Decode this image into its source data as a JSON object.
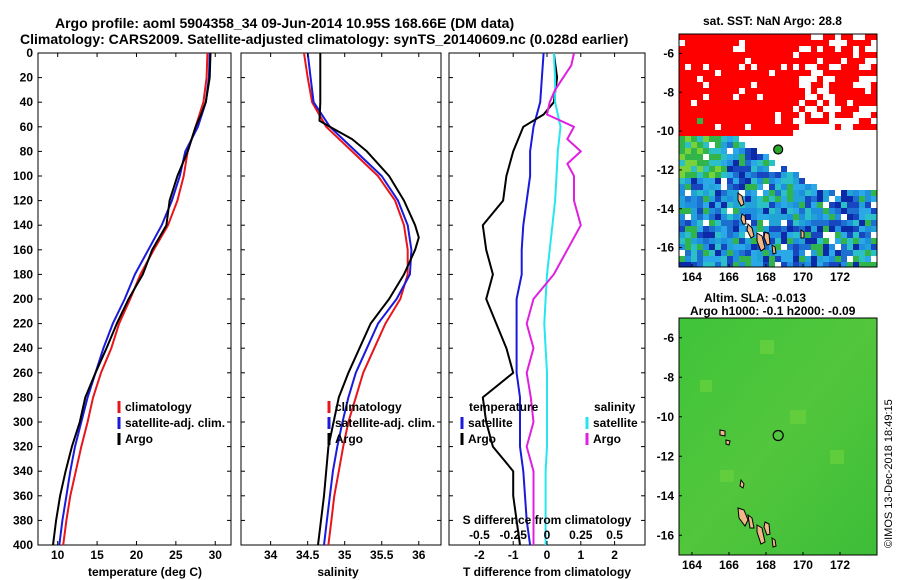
{
  "header": {
    "line1": "Argo profile: aoml 5904358_34 09-Jun-2014 10.95S 168.66E (DM data)",
    "line2": "Climatology: CARS2009. Satellite-adjusted climatology: synTS_20140609.nc (0.028d earlier)"
  },
  "colors": {
    "clim": "#e8151b",
    "sat": "#1a1adb",
    "argo": "#000000",
    "cyan": "#25e6f0",
    "magenta": "#e020e0"
  },
  "chart_data": [
    {
      "type": "line",
      "panel": "temperature",
      "xlabel": "temperature (deg C)",
      "xlim": [
        7.5,
        32
      ],
      "xticks": [
        "10",
        "15",
        "20",
        "25",
        "30"
      ],
      "ylim": [
        0,
        400
      ],
      "yticks": [
        "0",
        "20",
        "40",
        "60",
        "80",
        "100",
        "120",
        "140",
        "160",
        "180",
        "200",
        "220",
        "240",
        "260",
        "280",
        "300",
        "320",
        "340",
        "360",
        "380",
        "400"
      ],
      "legend": [
        "climatology",
        "satellite-adj. clim.",
        "Argo"
      ],
      "series": [
        {
          "name": "climatology",
          "color": "clim",
          "depth": [
            0,
            20,
            40,
            60,
            80,
            100,
            120,
            140,
            160,
            180,
            200,
            220,
            240,
            260,
            280,
            300,
            320,
            340,
            360,
            380,
            400
          ],
          "values": [
            29.0,
            28.9,
            28.5,
            27.5,
            26.5,
            26.0,
            25.2,
            24.0,
            22.2,
            20.5,
            19.2,
            17.8,
            16.8,
            15.5,
            14.5,
            13.8,
            13.0,
            12.3,
            11.6,
            11.1,
            10.7
          ]
        },
        {
          "name": "satellite-adj. clim.",
          "color": "sat",
          "depth": [
            0,
            20,
            40,
            60,
            80,
            100,
            120,
            140,
            160,
            180,
            200,
            220,
            240,
            260,
            280,
            300,
            320,
            340,
            360,
            380,
            400
          ],
          "values": [
            29.3,
            29.2,
            28.8,
            27.8,
            26.2,
            25.5,
            24.5,
            23.2,
            21.5,
            19.8,
            18.5,
            17.0,
            15.8,
            14.8,
            13.8,
            13.0,
            12.2,
            11.6,
            11.1,
            10.6,
            10.2
          ]
        },
        {
          "name": "Argo",
          "color": "argo",
          "depth": [
            0,
            20,
            40,
            50,
            60,
            80,
            100,
            120,
            140,
            160,
            180,
            200,
            220,
            240,
            260,
            280,
            300,
            320,
            340,
            360,
            380,
            400
          ],
          "values": [
            29.4,
            29.3,
            28.8,
            28.2,
            27.5,
            26.5,
            25.2,
            24.2,
            23.8,
            22.0,
            20.8,
            19.0,
            17.5,
            16.2,
            14.8,
            13.5,
            12.8,
            11.8,
            11.0,
            10.3,
            9.8,
            9.4
          ]
        }
      ]
    },
    {
      "type": "line",
      "panel": "salinity",
      "xlabel": "salinity",
      "xlim": [
        33.6,
        36.3
      ],
      "xticks": [
        "34",
        "34.5",
        "35",
        "35.5",
        "36"
      ],
      "ylim": [
        0,
        400
      ],
      "legend": [
        "climatology",
        "satellite-adj. clim.",
        "Argo"
      ],
      "series": [
        {
          "name": "climatology",
          "color": "clim",
          "depth": [
            0,
            20,
            40,
            60,
            80,
            100,
            120,
            140,
            160,
            180,
            200,
            220,
            240,
            260,
            280,
            300,
            320,
            340,
            360,
            380,
            400
          ],
          "values": [
            34.45,
            34.5,
            34.56,
            34.75,
            35.1,
            35.45,
            35.68,
            35.8,
            35.85,
            35.85,
            35.75,
            35.55,
            35.4,
            35.25,
            35.15,
            35.05,
            34.98,
            34.92,
            34.86,
            34.82,
            34.78
          ]
        },
        {
          "name": "satellite-adj. clim.",
          "color": "sat",
          "depth": [
            0,
            20,
            40,
            60,
            80,
            100,
            120,
            140,
            160,
            180,
            200,
            220,
            240,
            260,
            280,
            300,
            320,
            340,
            360,
            380,
            400
          ],
          "values": [
            34.5,
            34.54,
            34.58,
            34.8,
            35.15,
            35.5,
            35.72,
            35.85,
            35.9,
            35.88,
            35.7,
            35.45,
            35.3,
            35.15,
            35.05,
            34.97,
            34.9,
            34.84,
            34.8,
            34.76,
            34.72
          ]
        },
        {
          "name": "Argo",
          "color": "argo",
          "depth": [
            0,
            20,
            40,
            55,
            60,
            70,
            80,
            100,
            120,
            140,
            150,
            160,
            180,
            200,
            220,
            240,
            260,
            280,
            300,
            320,
            340,
            360,
            380,
            400
          ],
          "values": [
            34.67,
            34.67,
            34.67,
            34.66,
            34.8,
            35.1,
            35.3,
            35.6,
            35.8,
            35.95,
            36.0,
            35.95,
            35.8,
            35.6,
            35.35,
            35.2,
            35.05,
            34.92,
            34.85,
            34.78,
            34.75,
            34.72,
            34.68,
            34.64
          ]
        }
      ]
    },
    {
      "type": "line",
      "panel": "differences",
      "xlabel": "T difference from climatology",
      "xlabel_top": "S difference from climatology",
      "xlim": [
        -2.9,
        2.9
      ],
      "xticks_T": [
        "-2",
        "-1",
        "0",
        "1",
        "2"
      ],
      "xticks_S": [
        "-0.5",
        "-0.25",
        "0",
        "0.25",
        "0.5"
      ],
      "ylim": [
        0,
        400
      ],
      "legend_temperature": {
        "title": "temperature",
        "items": [
          "satellite",
          "Argo"
        ]
      },
      "legend_salinity": {
        "title": "salinity",
        "items": [
          "satellite",
          "Argo"
        ]
      },
      "series": [
        {
          "name": "T satellite",
          "color": "sat",
          "depth": [
            0,
            20,
            40,
            60,
            80,
            100,
            120,
            140,
            160,
            180,
            200,
            220,
            240,
            260,
            280,
            300,
            320,
            340,
            360,
            380,
            400
          ],
          "values": [
            -0.1,
            -0.15,
            -0.2,
            -0.4,
            -0.5,
            -0.5,
            -0.6,
            -0.7,
            -0.75,
            -0.75,
            -0.9,
            -0.9,
            -0.9,
            -0.9,
            -0.8,
            -0.8,
            -0.8,
            -0.7,
            -0.65,
            -0.6,
            -0.5
          ]
        },
        {
          "name": "T Argo",
          "color": "argo",
          "depth": [
            0,
            20,
            40,
            50,
            60,
            80,
            100,
            120,
            140,
            160,
            180,
            200,
            220,
            240,
            260,
            280,
            300,
            320,
            340,
            360,
            380,
            400
          ],
          "values": [
            0.2,
            0.3,
            0.2,
            -0.1,
            -0.7,
            -1.0,
            -1.2,
            -1.3,
            -1.9,
            -1.8,
            -1.6,
            -1.8,
            -1.5,
            -1.2,
            -1.0,
            -1.9,
            -1.8,
            -1.6,
            -1.0,
            -1.0,
            -0.9,
            -0.8
          ]
        },
        {
          "name": "S satellite",
          "color": "cyan",
          "depth": [
            0,
            20,
            40,
            60,
            80,
            100,
            120,
            140,
            160,
            180,
            200,
            220,
            240,
            260,
            280,
            300,
            320,
            340,
            360,
            380,
            400
          ],
          "values": [
            0.05,
            0.06,
            0.06,
            0.1,
            0.08,
            0.07,
            0.06,
            0.04,
            0.02,
            0.0,
            -0.01,
            -0.02,
            -0.01,
            0.0,
            0.0,
            0.0,
            0.0,
            -0.01,
            -0.01,
            -0.01,
            -0.01
          ]
        },
        {
          "name": "S Argo",
          "color": "magenta",
          "depth": [
            0,
            10,
            20,
            30,
            40,
            50,
            60,
            70,
            80,
            90,
            100,
            120,
            140,
            160,
            180,
            200,
            220,
            240,
            260,
            280,
            300,
            320,
            340,
            360,
            380,
            400
          ],
          "values": [
            0.2,
            0.18,
            0.12,
            0.06,
            0.02,
            0.0,
            0.2,
            0.15,
            0.25,
            0.15,
            0.2,
            0.2,
            0.25,
            0.15,
            0.05,
            -0.1,
            -0.15,
            -0.1,
            -0.15,
            -0.12,
            -0.1,
            -0.15,
            -0.1,
            -0.1,
            -0.1,
            -0.1
          ]
        }
      ]
    }
  ],
  "sst_map": {
    "title": "sat. SST: NaN Argo: 28.8",
    "xticks": [
      "164",
      "166",
      "168",
      "170",
      "172"
    ],
    "yticks": [
      "-6",
      "-8",
      "-10",
      "-12",
      "-14",
      "-16"
    ],
    "argo_lon": 168.66,
    "argo_lat": -10.95
  },
  "sla_map": {
    "title1": "Altim. SLA: -0.013",
    "title2": "Argo h1000: -0.1 h2000: -0.09",
    "xticks": [
      "164",
      "166",
      "168",
      "170",
      "172"
    ],
    "yticks": [
      "-6",
      "-8",
      "-10",
      "-12",
      "-14",
      "-16"
    ],
    "argo_lon": 168.66,
    "argo_lat": -10.95
  },
  "credit": "©IMOS 13-Dec-2018 18:49:15"
}
